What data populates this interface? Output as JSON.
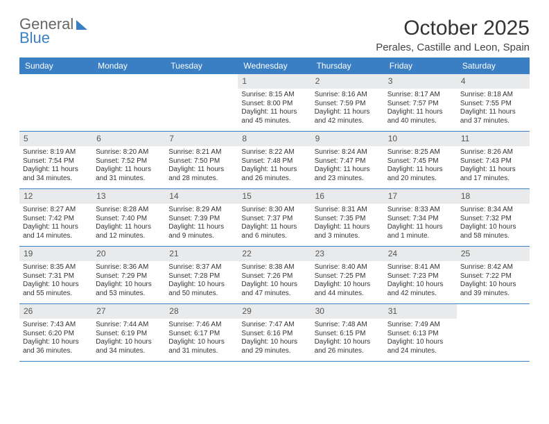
{
  "brand": {
    "line1": "General",
    "line2": "Blue"
  },
  "title": "October 2025",
  "location": "Perales, Castille and Leon, Spain",
  "colors": {
    "header_bg": "#3a7fc4",
    "header_text": "#ffffff",
    "daybar_bg": "#e9eaeb",
    "daybar_text": "#555555",
    "border": "#3a7fc4",
    "body_text": "#333333",
    "page_bg": "#ffffff"
  },
  "typography": {
    "month_title_fontsize": 30,
    "location_fontsize": 15,
    "dayhead_fontsize": 12,
    "daynum_fontsize": 12,
    "cell_fontsize": 10
  },
  "day_headers": [
    "Sunday",
    "Monday",
    "Tuesday",
    "Wednesday",
    "Thursday",
    "Friday",
    "Saturday"
  ],
  "weeks": [
    [
      null,
      null,
      null,
      {
        "n": "1",
        "sr": "Sunrise: 8:15 AM",
        "ss": "Sunset: 8:00 PM",
        "dl": "Daylight: 11 hours and 45 minutes."
      },
      {
        "n": "2",
        "sr": "Sunrise: 8:16 AM",
        "ss": "Sunset: 7:59 PM",
        "dl": "Daylight: 11 hours and 42 minutes."
      },
      {
        "n": "3",
        "sr": "Sunrise: 8:17 AM",
        "ss": "Sunset: 7:57 PM",
        "dl": "Daylight: 11 hours and 40 minutes."
      },
      {
        "n": "4",
        "sr": "Sunrise: 8:18 AM",
        "ss": "Sunset: 7:55 PM",
        "dl": "Daylight: 11 hours and 37 minutes."
      }
    ],
    [
      {
        "n": "5",
        "sr": "Sunrise: 8:19 AM",
        "ss": "Sunset: 7:54 PM",
        "dl": "Daylight: 11 hours and 34 minutes."
      },
      {
        "n": "6",
        "sr": "Sunrise: 8:20 AM",
        "ss": "Sunset: 7:52 PM",
        "dl": "Daylight: 11 hours and 31 minutes."
      },
      {
        "n": "7",
        "sr": "Sunrise: 8:21 AM",
        "ss": "Sunset: 7:50 PM",
        "dl": "Daylight: 11 hours and 28 minutes."
      },
      {
        "n": "8",
        "sr": "Sunrise: 8:22 AM",
        "ss": "Sunset: 7:48 PM",
        "dl": "Daylight: 11 hours and 26 minutes."
      },
      {
        "n": "9",
        "sr": "Sunrise: 8:24 AM",
        "ss": "Sunset: 7:47 PM",
        "dl": "Daylight: 11 hours and 23 minutes."
      },
      {
        "n": "10",
        "sr": "Sunrise: 8:25 AM",
        "ss": "Sunset: 7:45 PM",
        "dl": "Daylight: 11 hours and 20 minutes."
      },
      {
        "n": "11",
        "sr": "Sunrise: 8:26 AM",
        "ss": "Sunset: 7:43 PM",
        "dl": "Daylight: 11 hours and 17 minutes."
      }
    ],
    [
      {
        "n": "12",
        "sr": "Sunrise: 8:27 AM",
        "ss": "Sunset: 7:42 PM",
        "dl": "Daylight: 11 hours and 14 minutes."
      },
      {
        "n": "13",
        "sr": "Sunrise: 8:28 AM",
        "ss": "Sunset: 7:40 PM",
        "dl": "Daylight: 11 hours and 12 minutes."
      },
      {
        "n": "14",
        "sr": "Sunrise: 8:29 AM",
        "ss": "Sunset: 7:39 PM",
        "dl": "Daylight: 11 hours and 9 minutes."
      },
      {
        "n": "15",
        "sr": "Sunrise: 8:30 AM",
        "ss": "Sunset: 7:37 PM",
        "dl": "Daylight: 11 hours and 6 minutes."
      },
      {
        "n": "16",
        "sr": "Sunrise: 8:31 AM",
        "ss": "Sunset: 7:35 PM",
        "dl": "Daylight: 11 hours and 3 minutes."
      },
      {
        "n": "17",
        "sr": "Sunrise: 8:33 AM",
        "ss": "Sunset: 7:34 PM",
        "dl": "Daylight: 11 hours and 1 minute."
      },
      {
        "n": "18",
        "sr": "Sunrise: 8:34 AM",
        "ss": "Sunset: 7:32 PM",
        "dl": "Daylight: 10 hours and 58 minutes."
      }
    ],
    [
      {
        "n": "19",
        "sr": "Sunrise: 8:35 AM",
        "ss": "Sunset: 7:31 PM",
        "dl": "Daylight: 10 hours and 55 minutes."
      },
      {
        "n": "20",
        "sr": "Sunrise: 8:36 AM",
        "ss": "Sunset: 7:29 PM",
        "dl": "Daylight: 10 hours and 53 minutes."
      },
      {
        "n": "21",
        "sr": "Sunrise: 8:37 AM",
        "ss": "Sunset: 7:28 PM",
        "dl": "Daylight: 10 hours and 50 minutes."
      },
      {
        "n": "22",
        "sr": "Sunrise: 8:38 AM",
        "ss": "Sunset: 7:26 PM",
        "dl": "Daylight: 10 hours and 47 minutes."
      },
      {
        "n": "23",
        "sr": "Sunrise: 8:40 AM",
        "ss": "Sunset: 7:25 PM",
        "dl": "Daylight: 10 hours and 44 minutes."
      },
      {
        "n": "24",
        "sr": "Sunrise: 8:41 AM",
        "ss": "Sunset: 7:23 PM",
        "dl": "Daylight: 10 hours and 42 minutes."
      },
      {
        "n": "25",
        "sr": "Sunrise: 8:42 AM",
        "ss": "Sunset: 7:22 PM",
        "dl": "Daylight: 10 hours and 39 minutes."
      }
    ],
    [
      {
        "n": "26",
        "sr": "Sunrise: 7:43 AM",
        "ss": "Sunset: 6:20 PM",
        "dl": "Daylight: 10 hours and 36 minutes."
      },
      {
        "n": "27",
        "sr": "Sunrise: 7:44 AM",
        "ss": "Sunset: 6:19 PM",
        "dl": "Daylight: 10 hours and 34 minutes."
      },
      {
        "n": "28",
        "sr": "Sunrise: 7:46 AM",
        "ss": "Sunset: 6:17 PM",
        "dl": "Daylight: 10 hours and 31 minutes."
      },
      {
        "n": "29",
        "sr": "Sunrise: 7:47 AM",
        "ss": "Sunset: 6:16 PM",
        "dl": "Daylight: 10 hours and 29 minutes."
      },
      {
        "n": "30",
        "sr": "Sunrise: 7:48 AM",
        "ss": "Sunset: 6:15 PM",
        "dl": "Daylight: 10 hours and 26 minutes."
      },
      {
        "n": "31",
        "sr": "Sunrise: 7:49 AM",
        "ss": "Sunset: 6:13 PM",
        "dl": "Daylight: 10 hours and 24 minutes."
      },
      null
    ]
  ]
}
